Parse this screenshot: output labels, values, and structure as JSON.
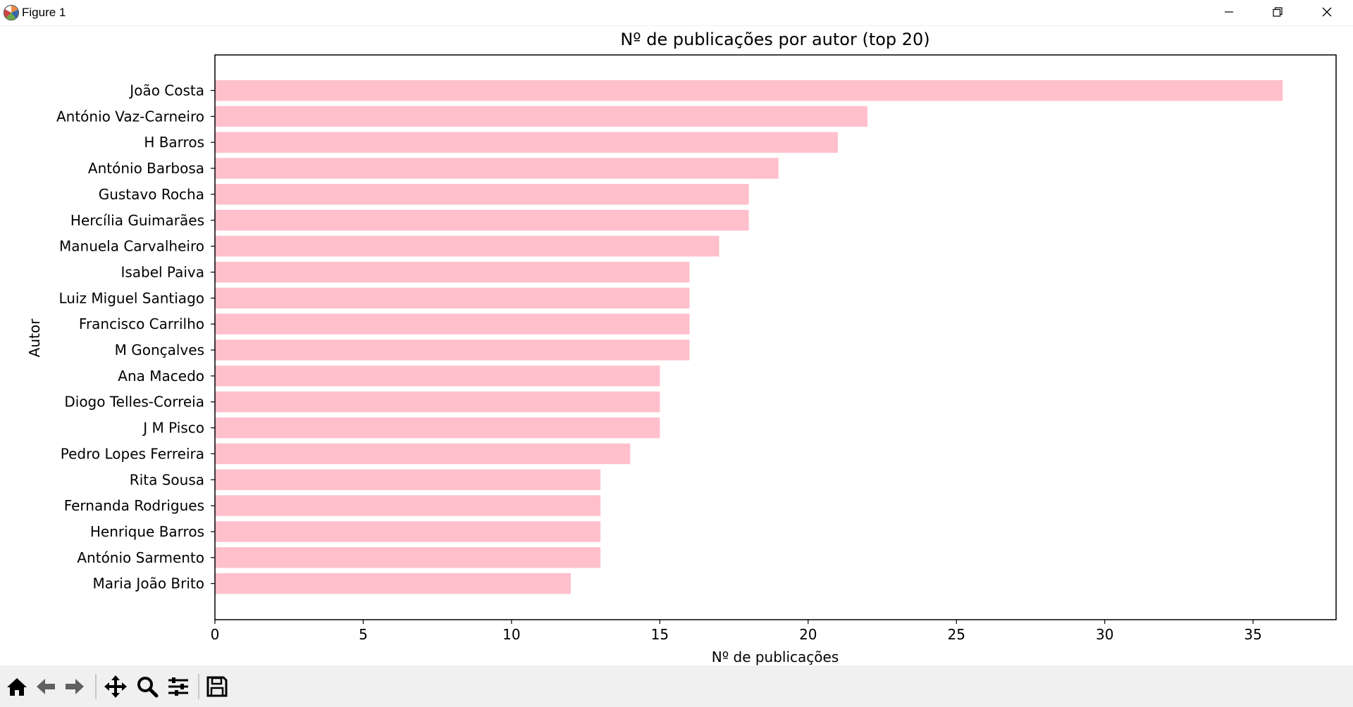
{
  "window": {
    "title": "Figure 1",
    "controls": [
      "minimize",
      "maximize",
      "close"
    ]
  },
  "toolbar": {
    "tools": [
      "home-icon",
      "back-icon",
      "forward-icon",
      "pan-icon",
      "zoom-icon",
      "configure-subplots-icon",
      "save-icon"
    ]
  },
  "chart_data": {
    "type": "bar",
    "orientation": "horizontal",
    "title": "Nº de publicações por autor (top 20)",
    "xlabel": "Nº de publicações",
    "ylabel": "Autor",
    "xlim": [
      0,
      37.8
    ],
    "xticks": [
      0,
      5,
      10,
      15,
      20,
      25,
      30,
      35
    ],
    "xtick_labels": [
      "0",
      "5",
      "10",
      "15",
      "20",
      "25",
      "30",
      "35"
    ],
    "grid": false,
    "bar_color": "#ffc0cb",
    "categories": [
      "João Costa",
      "António Vaz-Carneiro",
      "H Barros",
      "António Barbosa",
      "Gustavo Rocha",
      "Hercília Guimarães",
      "Manuela Carvalheiro",
      "Isabel Paiva",
      "Luiz Miguel Santiago",
      "Francisco Carrilho",
      "M Gonçalves",
      "Ana Macedo",
      "Diogo Telles-Correia",
      "J M Pisco",
      "Pedro Lopes Ferreira",
      "Rita Sousa",
      "Fernanda Rodrigues",
      "Henrique Barros",
      "António Sarmento",
      "Maria João Brito"
    ],
    "values": [
      36,
      22,
      21,
      19,
      18,
      18,
      17,
      16,
      16,
      16,
      16,
      15,
      15,
      15,
      14,
      13,
      13,
      13,
      13,
      12
    ]
  }
}
